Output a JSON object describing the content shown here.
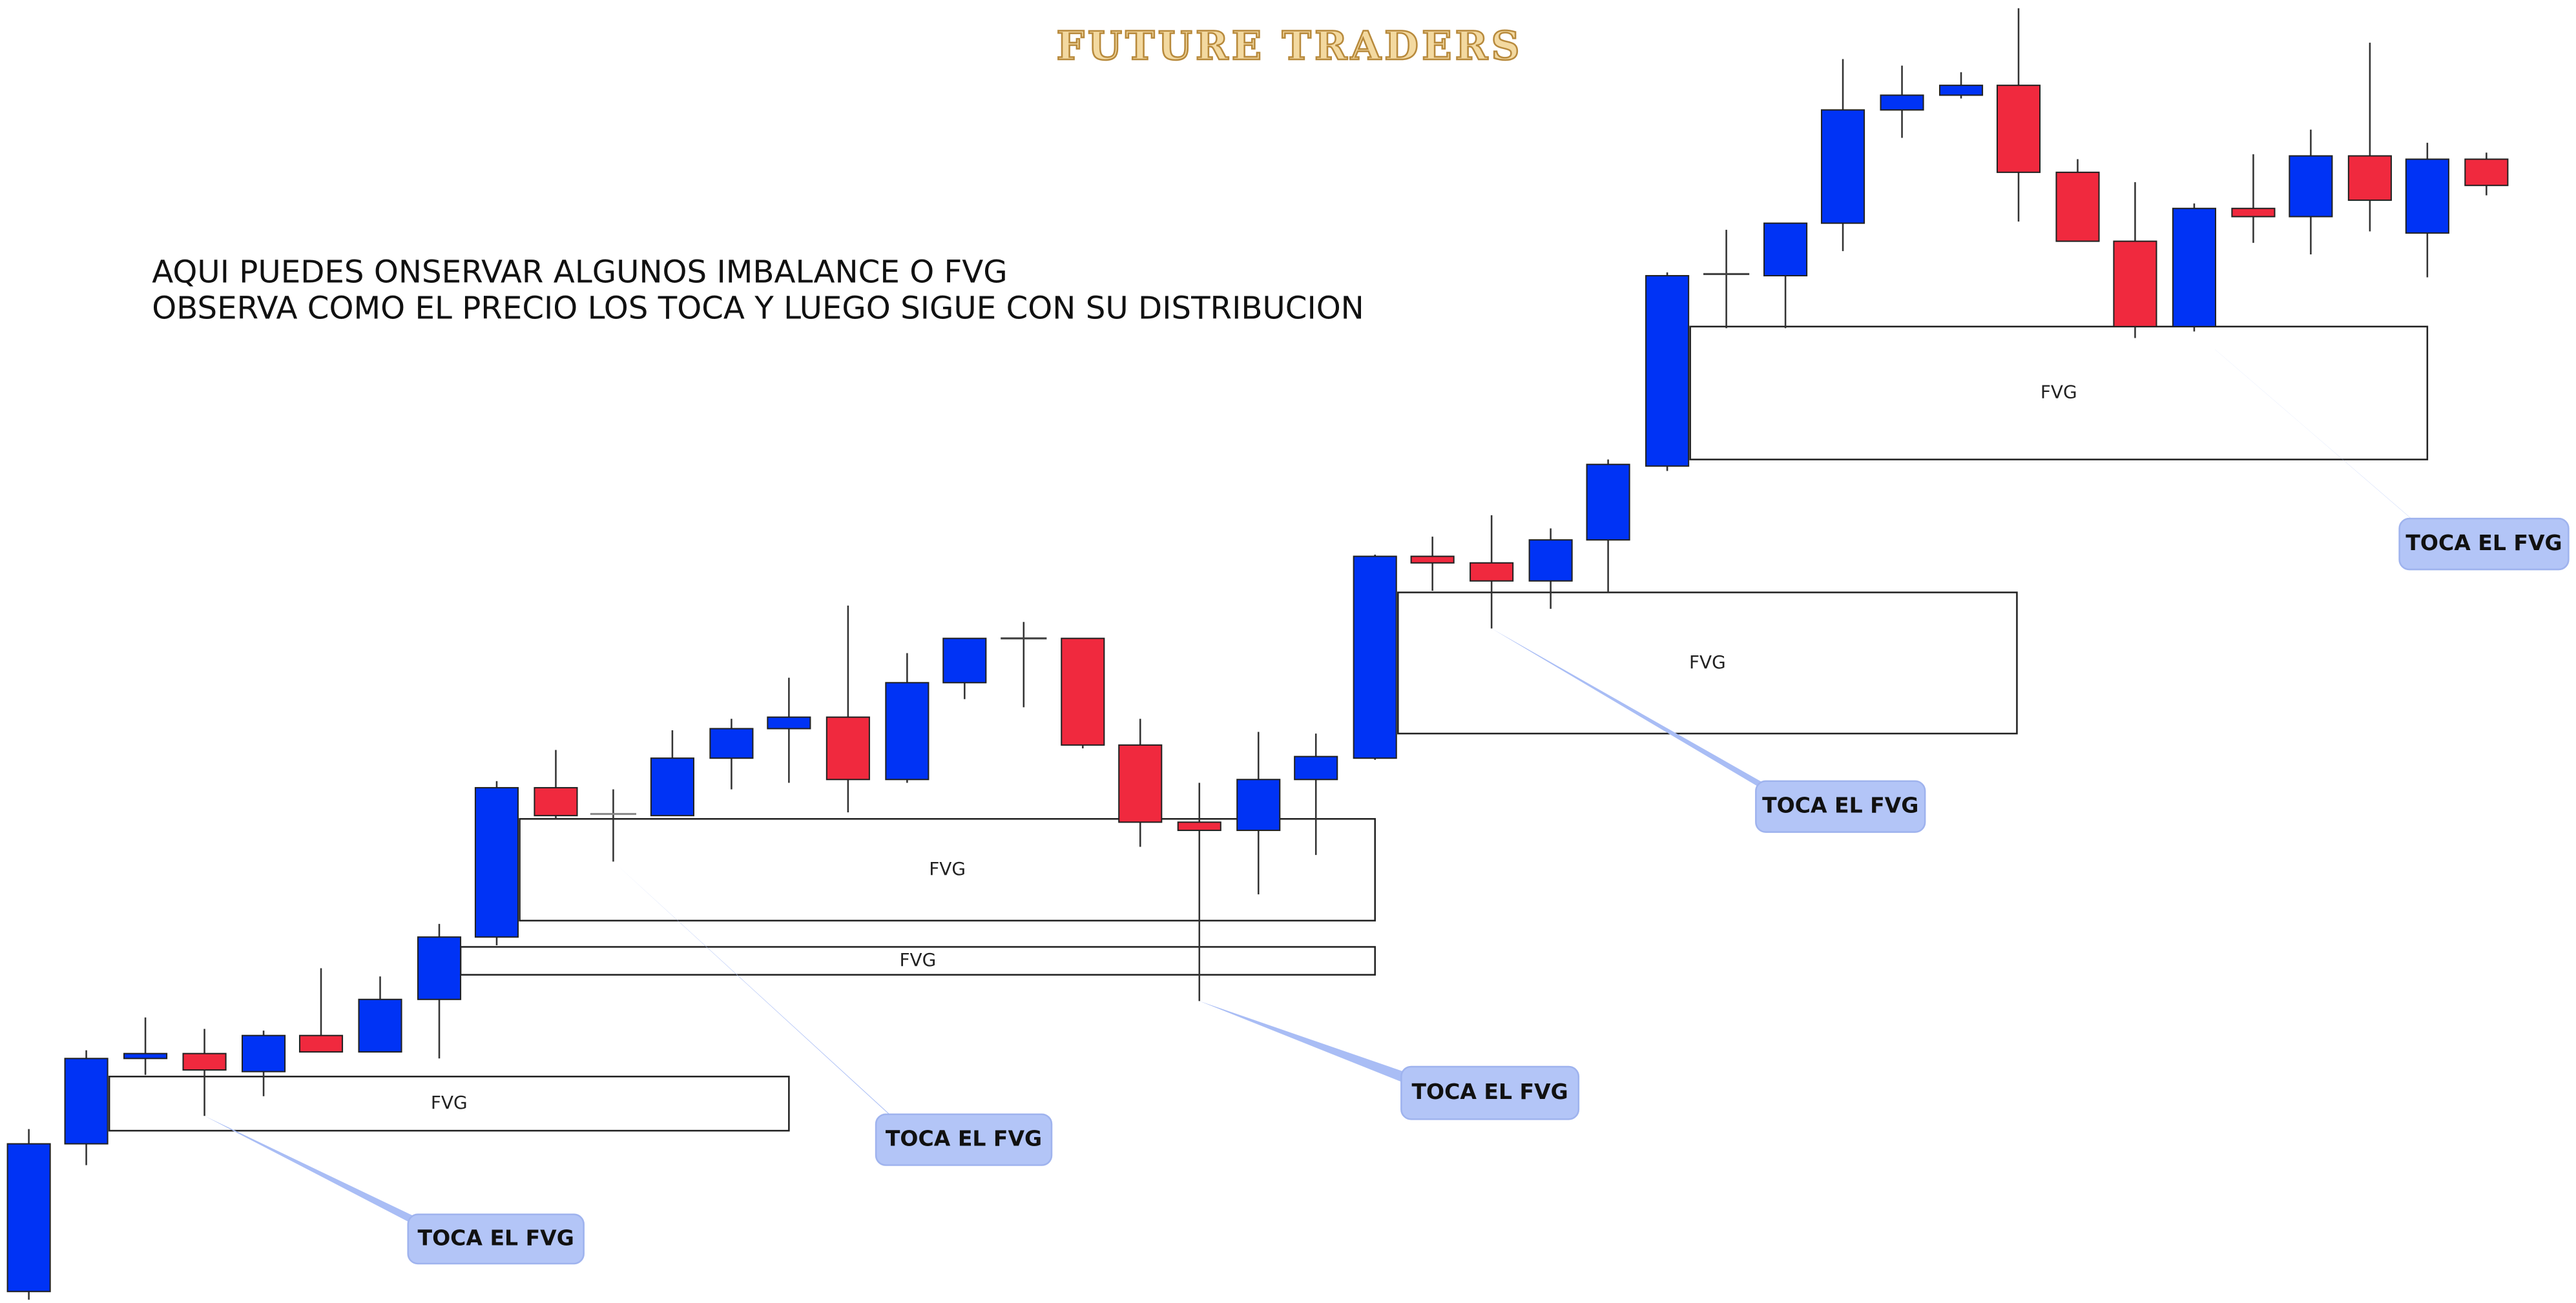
{
  "header": {
    "title": "FUTURE TRADERS"
  },
  "annotation": [
    "AQUI PUEDES ONSERVAR ALGUNOS IMBALANCE O FVG",
    "OBSERVA COMO EL PRECIO LOS TOCA Y LUEGO SIGUE CON SU DISTRIBUCION"
  ],
  "fvg_labels": [
    "FVG",
    "FVG",
    "FVG",
    "FVG",
    "FVG"
  ],
  "callouts": [
    "TOCA EL FVG",
    "TOCA EL FVG",
    "TOCA EL FVG",
    "TOCA EL FVG",
    "TOCA EL FVG"
  ]
}
